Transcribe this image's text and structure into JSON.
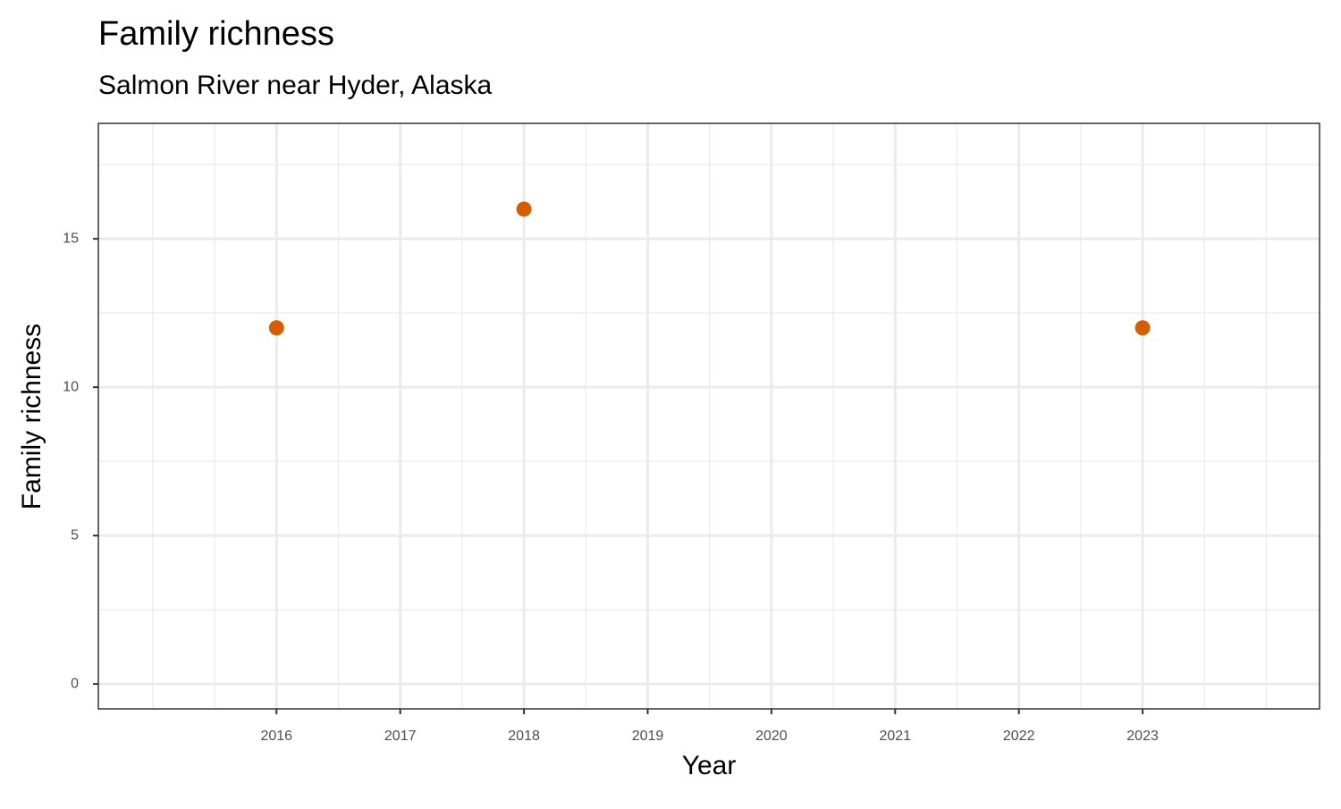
{
  "chart_data": {
    "type": "scatter",
    "title": "Family richness",
    "subtitle": "Salmon River near Hyder, Alaska",
    "x_label": "Year",
    "y_label": "Family richness",
    "series": [
      {
        "x": [
          2016,
          2018,
          2023
        ],
        "values": [
          12,
          16,
          12
        ],
        "color": "#d55e00"
      }
    ],
    "xlim": [
      2014.56,
      2024.43
    ],
    "xticks": [
      2016,
      2017,
      2018,
      2019,
      2020,
      2021,
      2022,
      2023
    ],
    "ylim": [
      -0.84,
      18.89
    ],
    "yticks": [
      0,
      5,
      10,
      15
    ],
    "grid": true,
    "minor_grid": true
  }
}
